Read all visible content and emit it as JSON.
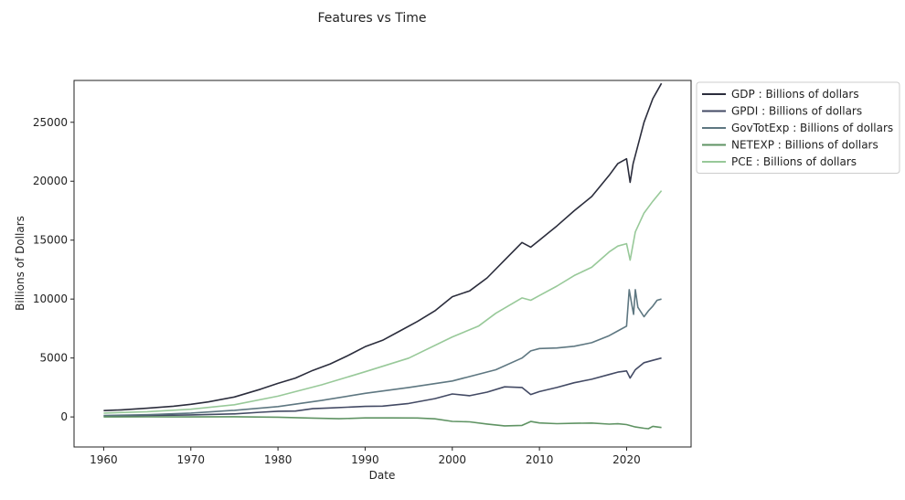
{
  "chart_data": {
    "type": "line",
    "title": "Features vs Time",
    "xlabel": "Date",
    "ylabel": "Billions of Dollars",
    "xlim": [
      1956.6,
      2027.4
    ],
    "ylim": [
      -2550,
      28550
    ],
    "xticks": [
      1960,
      1970,
      1980,
      1990,
      2000,
      2010,
      2020
    ],
    "yticks": [
      0,
      5000,
      10000,
      15000,
      20000,
      25000
    ],
    "grid": false,
    "legend_position": "outside-top-right",
    "series": [
      {
        "name": "GDP : Billions of dollars",
        "color": "#2b2d3c",
        "points": [
          [
            1960,
            540
          ],
          [
            1962,
            600
          ],
          [
            1965,
            740
          ],
          [
            1968,
            910
          ],
          [
            1970,
            1070
          ],
          [
            1972,
            1270
          ],
          [
            1975,
            1690
          ],
          [
            1978,
            2350
          ],
          [
            1980,
            2850
          ],
          [
            1982,
            3300
          ],
          [
            1984,
            3950
          ],
          [
            1986,
            4500
          ],
          [
            1988,
            5200
          ],
          [
            1990,
            5960
          ],
          [
            1992,
            6500
          ],
          [
            1994,
            7300
          ],
          [
            1996,
            8100
          ],
          [
            1998,
            9000
          ],
          [
            2000,
            10200
          ],
          [
            2002,
            10700
          ],
          [
            2004,
            11800
          ],
          [
            2006,
            13300
          ],
          [
            2008,
            14800
          ],
          [
            2009,
            14400
          ],
          [
            2010,
            15000
          ],
          [
            2012,
            16200
          ],
          [
            2014,
            17500
          ],
          [
            2016,
            18700
          ],
          [
            2018,
            20500
          ],
          [
            2019,
            21500
          ],
          [
            2020,
            21900
          ],
          [
            2020.4,
            19900
          ],
          [
            2020.75,
            21500
          ],
          [
            2021,
            22200
          ],
          [
            2022,
            25000
          ],
          [
            2023,
            27000
          ],
          [
            2024,
            28300
          ]
        ]
      },
      {
        "name": "GPDI : Billions of dollars",
        "color": "#434a64",
        "points": [
          [
            1960,
            80
          ],
          [
            1965,
            120
          ],
          [
            1970,
            170
          ],
          [
            1975,
            260
          ],
          [
            1978,
            400
          ],
          [
            1980,
            480
          ],
          [
            1982,
            500
          ],
          [
            1984,
            700
          ],
          [
            1986,
            760
          ],
          [
            1990,
            890
          ],
          [
            1992,
            920
          ],
          [
            1995,
            1140
          ],
          [
            1998,
            1550
          ],
          [
            2000,
            1950
          ],
          [
            2002,
            1800
          ],
          [
            2004,
            2100
          ],
          [
            2006,
            2550
          ],
          [
            2008,
            2500
          ],
          [
            2009,
            1900
          ],
          [
            2010,
            2150
          ],
          [
            2012,
            2500
          ],
          [
            2014,
            2900
          ],
          [
            2016,
            3200
          ],
          [
            2018,
            3600
          ],
          [
            2019,
            3800
          ],
          [
            2020,
            3900
          ],
          [
            2020.4,
            3300
          ],
          [
            2021,
            4000
          ],
          [
            2022,
            4600
          ],
          [
            2023,
            4800
          ],
          [
            2024,
            5000
          ]
        ]
      },
      {
        "name": "GovTotExp : Billions of dollars",
        "color": "#5e7781",
        "points": [
          [
            1960,
            120
          ],
          [
            1965,
            190
          ],
          [
            1970,
            330
          ],
          [
            1975,
            560
          ],
          [
            1980,
            880
          ],
          [
            1985,
            1400
          ],
          [
            1990,
            2000
          ],
          [
            1995,
            2500
          ],
          [
            2000,
            3050
          ],
          [
            2005,
            4000
          ],
          [
            2008,
            5000
          ],
          [
            2009,
            5600
          ],
          [
            2010,
            5800
          ],
          [
            2012,
            5850
          ],
          [
            2014,
            6000
          ],
          [
            2016,
            6300
          ],
          [
            2018,
            6900
          ],
          [
            2019,
            7300
          ],
          [
            2020,
            7700
          ],
          [
            2020.3,
            10800
          ],
          [
            2020.6,
            9500
          ],
          [
            2020.8,
            8700
          ],
          [
            2021,
            10800
          ],
          [
            2021.3,
            9300
          ],
          [
            2022,
            8500
          ],
          [
            2022.5,
            9000
          ],
          [
            2023,
            9400
          ],
          [
            2023.5,
            9900
          ],
          [
            2024,
            10000
          ]
        ]
      },
      {
        "name": "NETEXP : Billions of dollars",
        "color": "#5f9363",
        "points": [
          [
            1960,
            0
          ],
          [
            1965,
            10
          ],
          [
            1970,
            5
          ],
          [
            1975,
            20
          ],
          [
            1980,
            -20
          ],
          [
            1984,
            -100
          ],
          [
            1987,
            -150
          ],
          [
            1990,
            -80
          ],
          [
            1993,
            -80
          ],
          [
            1996,
            -90
          ],
          [
            1998,
            -160
          ],
          [
            2000,
            -380
          ],
          [
            2002,
            -420
          ],
          [
            2004,
            -600
          ],
          [
            2006,
            -760
          ],
          [
            2008,
            -720
          ],
          [
            2009,
            -390
          ],
          [
            2010,
            -510
          ],
          [
            2012,
            -570
          ],
          [
            2014,
            -540
          ],
          [
            2016,
            -520
          ],
          [
            2018,
            -610
          ],
          [
            2019,
            -580
          ],
          [
            2020,
            -650
          ],
          [
            2021,
            -850
          ],
          [
            2022,
            -960
          ],
          [
            2022.5,
            -1000
          ],
          [
            2023,
            -800
          ],
          [
            2024,
            -900
          ]
        ]
      },
      {
        "name": "PCE : Billions of dollars",
        "color": "#98c999",
        "points": [
          [
            1960,
            330
          ],
          [
            1965,
            440
          ],
          [
            1970,
            650
          ],
          [
            1975,
            1030
          ],
          [
            1980,
            1760
          ],
          [
            1985,
            2720
          ],
          [
            1990,
            3830
          ],
          [
            1995,
            4990
          ],
          [
            2000,
            6790
          ],
          [
            2003,
            7700
          ],
          [
            2005,
            8800
          ],
          [
            2008,
            10100
          ],
          [
            2009,
            9900
          ],
          [
            2010,
            10300
          ],
          [
            2012,
            11100
          ],
          [
            2014,
            12000
          ],
          [
            2016,
            12700
          ],
          [
            2018,
            14000
          ],
          [
            2019,
            14500
          ],
          [
            2020,
            14700
          ],
          [
            2020.4,
            13300
          ],
          [
            2021,
            15700
          ],
          [
            2022,
            17300
          ],
          [
            2023,
            18300
          ],
          [
            2024,
            19200
          ]
        ]
      }
    ]
  }
}
